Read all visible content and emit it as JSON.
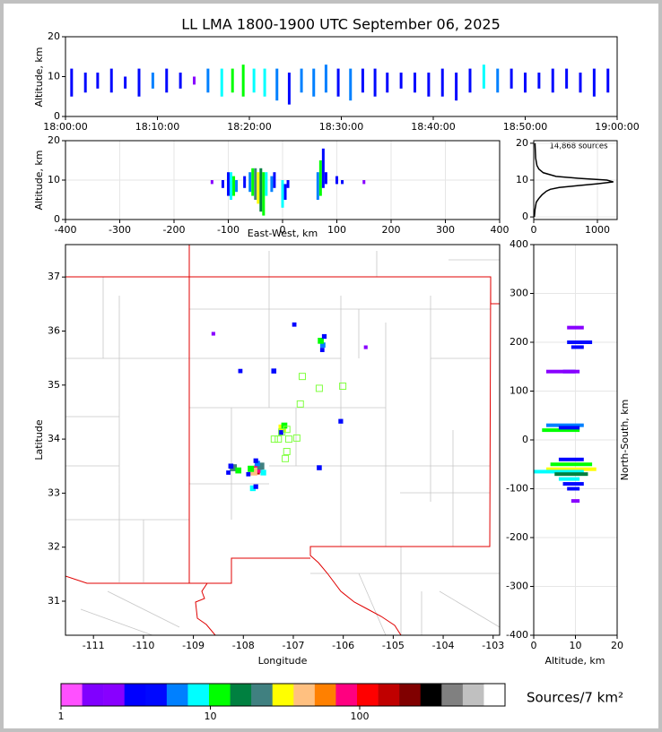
{
  "chart_data": [
    {
      "type": "strip",
      "title": "LL LMA 1800-1900 UTC September 06, 2025",
      "ylabel": "Altitude, km",
      "xlim": [
        "18:00:00",
        "19:00:00"
      ],
      "xticks": [
        "18:00:00",
        "18:10:00",
        "18:20:00",
        "18:30:00",
        "18:40:00",
        "18:50:00",
        "19:00:00"
      ],
      "ylim": [
        0,
        20
      ],
      "yticks": [
        0,
        10,
        20
      ],
      "grid": false,
      "x": [
        "18:00:40",
        "18:02:10",
        "18:03:30",
        "18:05:00",
        "18:06:30",
        "18:08:00",
        "18:09:30",
        "18:11:00",
        "18:12:30",
        "18:14:00",
        "18:15:30",
        "18:17:00",
        "18:18:10",
        "18:19:20",
        "18:20:30",
        "18:21:40",
        "18:23:00",
        "18:24:20",
        "18:25:40",
        "18:27:00",
        "18:28:20",
        "18:29:40",
        "18:31:00",
        "18:32:20",
        "18:33:40",
        "18:35:00",
        "18:36:30",
        "18:38:00",
        "18:39:30",
        "18:41:00",
        "18:42:30",
        "18:44:00",
        "18:45:30",
        "18:47:00",
        "18:48:30",
        "18:50:00",
        "18:51:30",
        "18:53:00",
        "18:54:30",
        "18:56:00",
        "18:57:30",
        "18:59:00"
      ],
      "bottom": [
        5,
        6,
        7,
        6,
        7,
        5,
        7,
        6,
        7,
        8,
        6,
        5,
        6,
        5,
        6,
        5,
        4,
        3,
        6,
        5,
        6,
        5,
        4,
        6,
        5,
        6,
        7,
        6,
        5,
        5,
        4,
        6,
        7,
        6,
        7,
        6,
        7,
        6,
        7,
        6,
        5,
        6
      ],
      "top": [
        12,
        11,
        11,
        12,
        10,
        12,
        11,
        12,
        11,
        10,
        12,
        12,
        12,
        13,
        12,
        12,
        12,
        11,
        12,
        12,
        13,
        12,
        12,
        12,
        12,
        11,
        11,
        11,
        11,
        12,
        11,
        12,
        13,
        12,
        12,
        11,
        11,
        12,
        12,
        11,
        12,
        12
      ],
      "density": [
        3,
        4,
        3,
        5,
        3,
        4,
        6,
        5,
        4,
        2,
        6,
        8,
        10,
        12,
        9,
        8,
        7,
        5,
        6,
        7,
        6,
        5,
        6,
        5,
        4,
        3,
        3,
        4,
        3,
        4,
        3,
        5,
        9,
        6,
        4,
        3,
        4,
        5,
        4,
        3,
        4,
        3
      ]
    },
    {
      "type": "strip",
      "xlabel": "East-West, km",
      "ylabel": "Altitude, km",
      "xlim": [
        -400,
        400
      ],
      "xticks": [
        -400,
        -300,
        -200,
        -100,
        0,
        100,
        200,
        300,
        400
      ],
      "ylim": [
        0,
        20
      ],
      "yticks": [
        0,
        10,
        20
      ],
      "grid": true,
      "x": [
        -130,
        -110,
        -100,
        -95,
        -90,
        -85,
        -70,
        -60,
        -55,
        -50,
        -45,
        -40,
        -35,
        -30,
        -20,
        -15,
        0,
        5,
        10,
        65,
        70,
        75,
        80,
        100,
        110,
        150
      ],
      "bottom": [
        9,
        8,
        6,
        5,
        6,
        7,
        8,
        7,
        6,
        5,
        4,
        2,
        1,
        6,
        7,
        8,
        3,
        5,
        8,
        5,
        6,
        8,
        9,
        9,
        9,
        9
      ],
      "top": [
        10,
        10,
        12,
        12,
        11,
        10,
        11,
        12,
        13,
        13,
        12,
        13,
        12,
        12,
        11,
        12,
        10,
        9,
        10,
        12,
        15,
        18,
        12,
        11,
        10,
        10
      ],
      "density": [
        2,
        3,
        5,
        8,
        12,
        6,
        4,
        6,
        10,
        20,
        30,
        15,
        10,
        8,
        6,
        4,
        8,
        5,
        3,
        6,
        10,
        5,
        3,
        3,
        4,
        2
      ]
    },
    {
      "type": "line",
      "annotation": "14,868 sources",
      "xlim": [
        0,
        1310
      ],
      "xticks": [
        0,
        1000
      ],
      "ylim": [
        -0.7,
        20.7
      ],
      "yticks": [
        0,
        10,
        20
      ],
      "grid": true,
      "color": "#000000",
      "x": [
        10,
        20,
        40,
        80,
        130,
        200,
        260,
        400,
        700,
        1000,
        1250,
        1150,
        700,
        350,
        150,
        80,
        50,
        30,
        20
      ],
      "y": [
        0,
        2,
        4,
        5,
        6,
        7,
        7.5,
        8,
        8.5,
        9,
        9.5,
        10,
        10.5,
        11,
        12,
        13,
        14,
        16,
        20
      ]
    },
    {
      "type": "map",
      "xlabel": "Longitude",
      "ylabel": "Latitude",
      "xlim": [
        -111.56,
        -102.87
      ],
      "xticks": [
        -111,
        -110,
        -109,
        -108,
        -107,
        -106,
        -105,
        -104,
        -103
      ],
      "ylim": [
        30.37,
        37.6
      ],
      "yticks": [
        31,
        32,
        33,
        34,
        35,
        36,
        37
      ],
      "x": [
        -107.75,
        -107.7,
        -107.8,
        -107.65,
        -107.85,
        -107.72,
        -107.6,
        -107.9,
        -107.75,
        -108.2,
        -108.1,
        -108.25,
        -108.3,
        -107.81,
        -107.75,
        -107.22,
        -107.18,
        -107.25,
        -106.41,
        -106.45,
        -106.38,
        -106.42,
        -106.48,
        -106.05,
        -107.39,
        -108.06,
        -106.98,
        -105.55,
        -108.6
      ],
      "y": [
        33.42,
        33.45,
        33.4,
        33.5,
        33.45,
        33.55,
        33.38,
        33.35,
        33.6,
        33.47,
        33.42,
        33.5,
        33.38,
        33.09,
        33.12,
        34.2,
        34.25,
        34.12,
        35.74,
        35.82,
        35.9,
        35.65,
        33.47,
        34.33,
        35.26,
        35.26,
        36.12,
        35.7,
        35.95
      ],
      "density": [
        150,
        80,
        40,
        20,
        12,
        6,
        8,
        3,
        4,
        20,
        10,
        5,
        3,
        8,
        4,
        30,
        10,
        5,
        6,
        10,
        4,
        3,
        5,
        4,
        5,
        3,
        3,
        2,
        2
      ],
      "stations": {
        "color": "#80ff40",
        "x": [
          -106.82,
          -106.48,
          -106.01,
          -106.86,
          -107.13,
          -107.3,
          -107.09,
          -106.93,
          -107.13,
          -107.16,
          -107.38,
          -107.23
        ],
        "y": [
          35.16,
          34.94,
          34.98,
          34.65,
          34.18,
          34.0,
          34.0,
          34.02,
          33.77,
          33.64,
          34.0,
          34.13
        ]
      }
    },
    {
      "type": "strip",
      "orientation": "horizontal",
      "xlabel": "Altitude, km",
      "ylabel": "North-South, km",
      "xlim": [
        0,
        20
      ],
      "xticks": [
        0,
        10,
        20
      ],
      "ylim": [
        -400,
        400
      ],
      "yticks": [
        -400,
        -300,
        -200,
        -100,
        0,
        100,
        200,
        300,
        400
      ],
      "grid": true,
      "y": [
        230,
        200,
        190,
        140,
        140,
        30,
        20,
        25,
        -40,
        -50,
        -60,
        -65,
        -70,
        -80,
        -90,
        -100,
        -125
      ],
      "bottom": [
        8,
        8,
        9,
        7,
        3,
        3,
        2,
        6,
        6,
        4,
        3,
        0,
        5,
        6,
        7,
        8,
        9
      ],
      "top": [
        12,
        14,
        12,
        10,
        11,
        12,
        11,
        11,
        12,
        14,
        15,
        12,
        13,
        11,
        12,
        11,
        11
      ],
      "density": [
        2,
        4,
        3,
        3,
        2,
        6,
        10,
        4,
        5,
        10,
        30,
        8,
        15,
        8,
        5,
        4,
        2
      ]
    },
    {
      "type": "colorbar",
      "label": "Sources/7 km²",
      "xlim": [
        1,
        940
      ],
      "xticks": [
        1,
        10,
        100
      ],
      "log": true,
      "colors": [
        "#ff50ff",
        "#8000ff",
        "#8800ff",
        "#0000ff",
        "#0008ff",
        "#0080ff",
        "#00ffff",
        "#00ff00",
        "#008040",
        "#408080",
        "#ffff00",
        "#ffc080",
        "#ff8000",
        "#ff0080",
        "#ff0000",
        "#c00000",
        "#800000",
        "#000000",
        "#808080",
        "#c0c0c0",
        "#ffffff"
      ]
    }
  ]
}
